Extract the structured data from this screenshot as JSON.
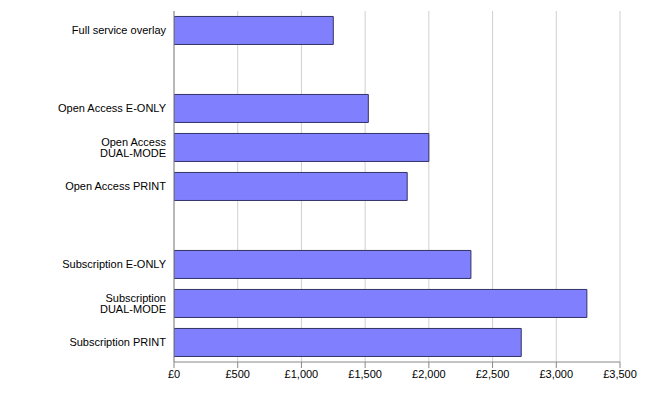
{
  "chart_data": {
    "type": "bar",
    "orientation": "horizontal",
    "categories": [
      "Full service overlay",
      null,
      "Open Access E-ONLY",
      "Open Access DUAL-MODE",
      "Open Access PRINT",
      null,
      "Subscription E-ONLY",
      "Subscription DUAL-MODE",
      "Subscription PRINT"
    ],
    "values": [
      1250,
      null,
      1525,
      2000,
      1830,
      null,
      2330,
      3240,
      2725
    ],
    "color": "#8080ff",
    "xlim": [
      0,
      3500
    ],
    "xticks": [
      {
        "value": 0,
        "label": "£0"
      },
      {
        "value": 500,
        "label": "£500"
      },
      {
        "value": 1000,
        "label": "£1,000"
      },
      {
        "value": 1500,
        "label": "£1,500"
      },
      {
        "value": 2000,
        "label": "£2,000"
      },
      {
        "value": 2500,
        "label": "£2,500"
      },
      {
        "value": 3000,
        "label": "£3,000"
      },
      {
        "value": 3500,
        "label": "£3,500"
      }
    ],
    "grid": true
  }
}
